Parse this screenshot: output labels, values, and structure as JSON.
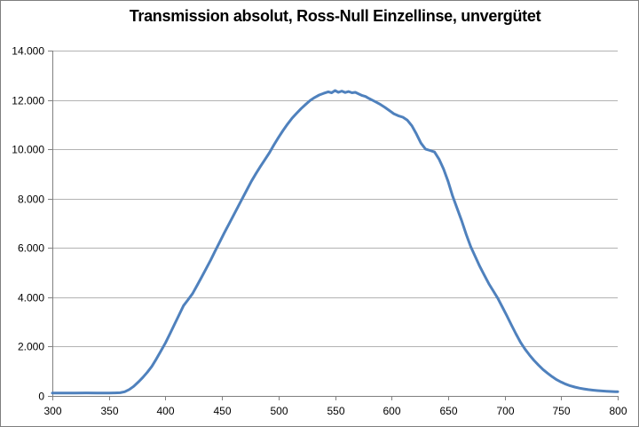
{
  "chart_data": {
    "type": "line",
    "title": "Transmission absolut, Ross-Null Einzellinse, unvergütet",
    "xlabel": "",
    "ylabel": "",
    "xlim": [
      300,
      800
    ],
    "ylim": [
      0,
      14000
    ],
    "grid": "horizontal",
    "legend": "none",
    "x_ticks": [
      300,
      350,
      400,
      450,
      500,
      550,
      600,
      650,
      700,
      750,
      800
    ],
    "x_tick_labels": [
      "300",
      "350",
      "400",
      "450",
      "500",
      "550",
      "600",
      "650",
      "700",
      "750",
      "800"
    ],
    "y_ticks": [
      {
        "value": 0,
        "label": "0"
      },
      {
        "value": 2000,
        "label": "2.000"
      },
      {
        "value": 4000,
        "label": "4.000"
      },
      {
        "value": 6000,
        "label": "6.000"
      },
      {
        "value": 8000,
        "label": "8.000"
      },
      {
        "value": 10000,
        "label": "10.000"
      },
      {
        "value": 12000,
        "label": "12.000"
      },
      {
        "value": 14000,
        "label": "14.000"
      }
    ],
    "colors": {
      "line": "#4F81BD",
      "gridline": "#b3b3b3",
      "axis": "#808080",
      "title": "#000000",
      "background": "#ffffff"
    },
    "series": [
      {
        "name": "Transmission absolut",
        "points": [
          [
            300,
            120
          ],
          [
            310,
            120
          ],
          [
            320,
            118
          ],
          [
            330,
            121
          ],
          [
            340,
            119
          ],
          [
            350,
            120
          ],
          [
            355,
            121
          ],
          [
            360,
            130
          ],
          [
            364,
            170
          ],
          [
            368,
            260
          ],
          [
            372,
            390
          ],
          [
            376,
            560
          ],
          [
            380,
            750
          ],
          [
            384,
            960
          ],
          [
            388,
            1200
          ],
          [
            392,
            1500
          ],
          [
            396,
            1820
          ],
          [
            400,
            2150
          ],
          [
            404,
            2520
          ],
          [
            408,
            2900
          ],
          [
            412,
            3280
          ],
          [
            416,
            3660
          ],
          [
            420,
            3900
          ],
          [
            424,
            4150
          ],
          [
            428,
            4480
          ],
          [
            432,
            4820
          ],
          [
            436,
            5160
          ],
          [
            440,
            5510
          ],
          [
            444,
            5880
          ],
          [
            448,
            6240
          ],
          [
            452,
            6600
          ],
          [
            456,
            6950
          ],
          [
            460,
            7300
          ],
          [
            464,
            7650
          ],
          [
            468,
            8000
          ],
          [
            472,
            8350
          ],
          [
            476,
            8700
          ],
          [
            480,
            9010
          ],
          [
            484,
            9300
          ],
          [
            488,
            9580
          ],
          [
            492,
            9860
          ],
          [
            496,
            10180
          ],
          [
            500,
            10480
          ],
          [
            504,
            10760
          ],
          [
            508,
            11020
          ],
          [
            512,
            11260
          ],
          [
            516,
            11460
          ],
          [
            520,
            11650
          ],
          [
            524,
            11820
          ],
          [
            528,
            11980
          ],
          [
            532,
            12100
          ],
          [
            536,
            12200
          ],
          [
            540,
            12270
          ],
          [
            544,
            12330
          ],
          [
            547,
            12290
          ],
          [
            550,
            12380
          ],
          [
            553,
            12310
          ],
          [
            556,
            12360
          ],
          [
            559,
            12300
          ],
          [
            562,
            12340
          ],
          [
            565,
            12290
          ],
          [
            568,
            12310
          ],
          [
            571,
            12240
          ],
          [
            574,
            12180
          ],
          [
            577,
            12140
          ],
          [
            580,
            12060
          ],
          [
            583,
            11990
          ],
          [
            586,
            11920
          ],
          [
            590,
            11820
          ],
          [
            594,
            11700
          ],
          [
            598,
            11570
          ],
          [
            602,
            11440
          ],
          [
            606,
            11360
          ],
          [
            610,
            11300
          ],
          [
            614,
            11180
          ],
          [
            618,
            10950
          ],
          [
            622,
            10620
          ],
          [
            626,
            10250
          ],
          [
            630,
            10010
          ],
          [
            634,
            9950
          ],
          [
            638,
            9890
          ],
          [
            642,
            9600
          ],
          [
            646,
            9200
          ],
          [
            650,
            8700
          ],
          [
            654,
            8100
          ],
          [
            658,
            7600
          ],
          [
            662,
            7100
          ],
          [
            666,
            6550
          ],
          [
            670,
            6050
          ],
          [
            674,
            5650
          ],
          [
            678,
            5250
          ],
          [
            682,
            4900
          ],
          [
            686,
            4550
          ],
          [
            690,
            4250
          ],
          [
            694,
            3950
          ],
          [
            698,
            3600
          ],
          [
            702,
            3250
          ],
          [
            706,
            2880
          ],
          [
            710,
            2520
          ],
          [
            714,
            2180
          ],
          [
            718,
            1900
          ],
          [
            722,
            1660
          ],
          [
            726,
            1440
          ],
          [
            730,
            1250
          ],
          [
            734,
            1070
          ],
          [
            738,
            920
          ],
          [
            742,
            780
          ],
          [
            746,
            660
          ],
          [
            750,
            560
          ],
          [
            754,
            480
          ],
          [
            758,
            410
          ],
          [
            762,
            360
          ],
          [
            766,
            315
          ],
          [
            770,
            283
          ],
          [
            774,
            255
          ],
          [
            778,
            233
          ],
          [
            782,
            215
          ],
          [
            786,
            200
          ],
          [
            790,
            190
          ],
          [
            794,
            180
          ],
          [
            798,
            174
          ],
          [
            800,
            172
          ]
        ]
      }
    ]
  }
}
